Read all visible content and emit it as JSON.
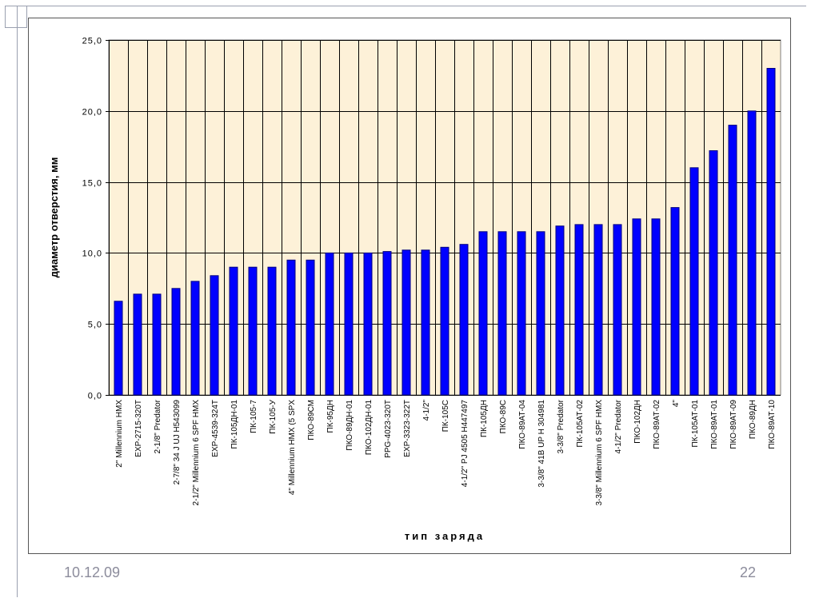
{
  "slide": {
    "date": "10.12.09",
    "page_number": "22"
  },
  "colors": {
    "bar_fill": "#0000ff",
    "bar_stroke": "#000080",
    "plot_background": "#fdf1d8",
    "footer_text": "#8c8c9c"
  },
  "chart_data": {
    "type": "bar",
    "title": "",
    "xlabel": "тип заряда",
    "ylabel": "диаметр отверстия, мм",
    "ylim": [
      0,
      25
    ],
    "yticks": [
      "0,0",
      "5,0",
      "10,0",
      "15,0",
      "20,0",
      "25,0"
    ],
    "grid": "horizontal and vertical",
    "legend": "none",
    "categories": [
      "2\" Millennium HMX",
      "EXP-2715-320T",
      "2-1/8\" Predator",
      "2-7/8\" 34 J UJ H543099",
      "2-1/2\" Millennium 6 SPF HMX",
      "EXP-4539-324T",
      "ПК-105ДН-01",
      "ПК-105-7",
      "ПК-105-У",
      "4\" Millennium HMX (5 SPX",
      "ПКО-89СМ",
      "ПК-95ДН",
      "ПКО-89ДН-01",
      "ПКО-102ДН-01",
      "PPG-4023-320T",
      "EXP-3323-322T",
      "4-1/2\"",
      "ПК-105С",
      "4-1/2\" PJ 4505 H447497",
      "ПК-105ДН",
      "ПКО-89С",
      "ПКО-89АТ-04",
      "3-3/8\" 41B UP H 304981",
      "3-3/8\" Predator",
      "ПК-105АТ-02",
      "3-3/8\" Millennium 6 SPF HMX",
      "4-1/2\" Predator",
      "ПКО-102ДН",
      "ПКО-89АТ-02",
      "4\"",
      "ПК-105АТ-01",
      "ПКО-89АТ-01",
      "ПКО-89АТ-09",
      "ПКО-89ДН",
      "ПКО-89АТ-10"
    ],
    "values": [
      6.6,
      7.1,
      7.1,
      7.5,
      8.0,
      8.4,
      9.0,
      9.0,
      9.0,
      9.5,
      9.5,
      10.0,
      10.0,
      10.0,
      10.1,
      10.2,
      10.2,
      10.4,
      10.6,
      11.5,
      11.5,
      11.5,
      11.5,
      11.9,
      12.0,
      12.0,
      12.0,
      12.4,
      12.4,
      13.2,
      16.0,
      17.2,
      19.0,
      20.0,
      23.0
    ]
  }
}
